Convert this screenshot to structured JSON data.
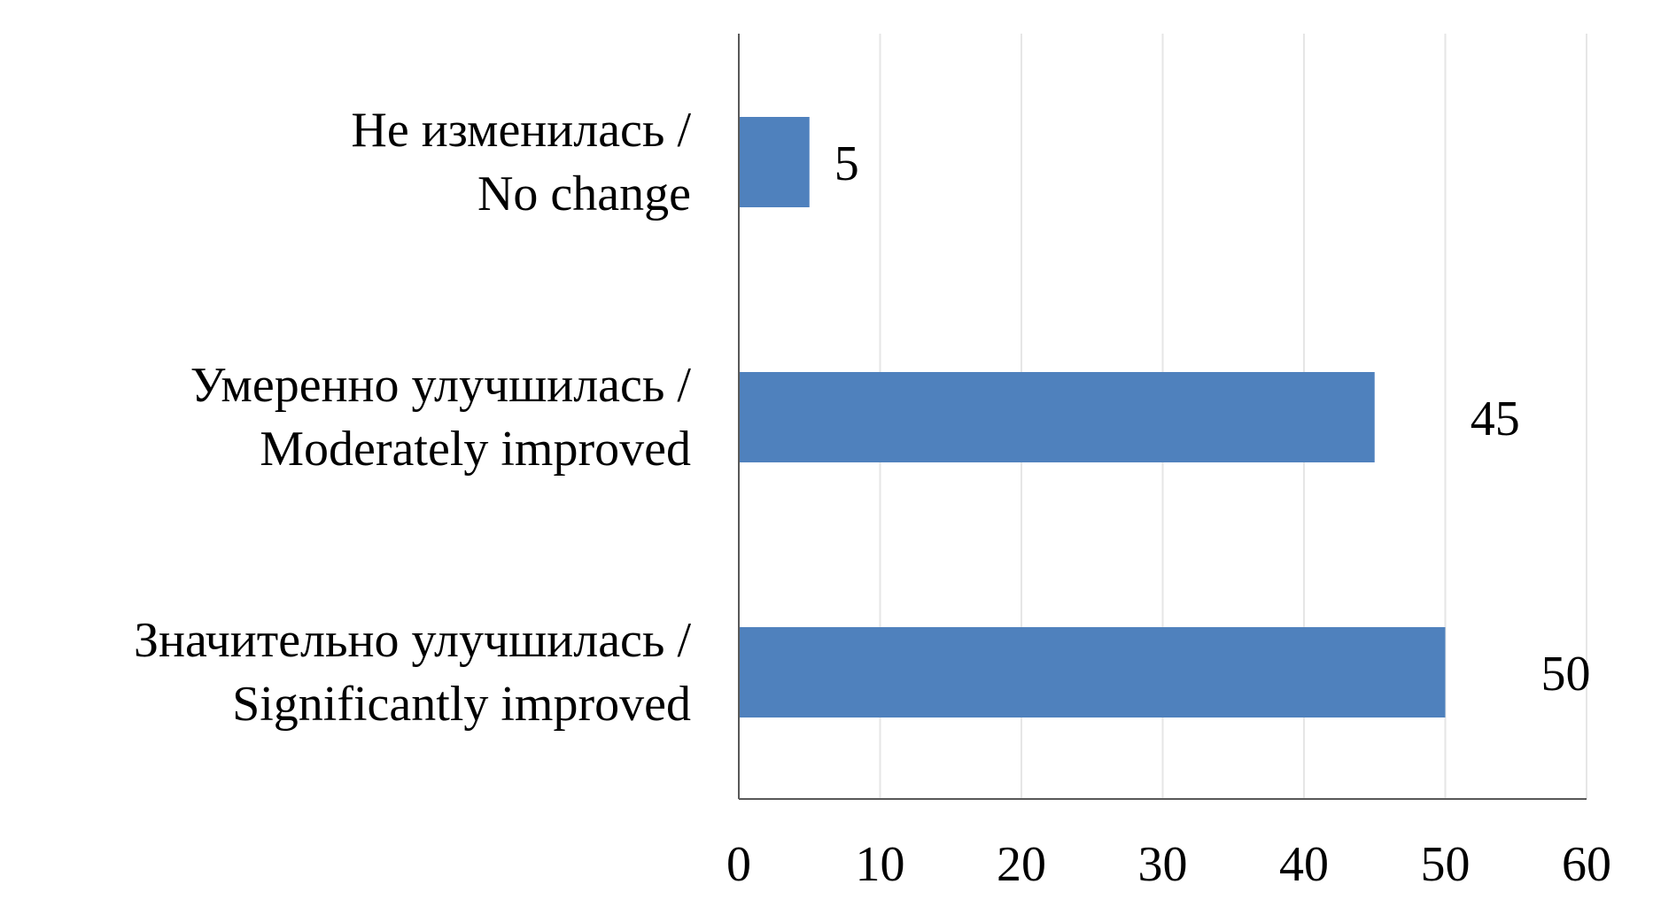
{
  "chart_data": {
    "type": "bar",
    "orientation": "horizontal",
    "categories": [
      [
        "Не изменилась /",
        "No change"
      ],
      [
        "Умеренно улучшилась /",
        "Moderately improved"
      ],
      [
        "Значительно улучшилась /",
        "Significantly improved"
      ]
    ],
    "values": [
      5,
      45,
      50
    ],
    "data_labels": [
      "5",
      "45",
      "50"
    ],
    "xlim": [
      0,
      60
    ],
    "x_ticks": [
      0,
      10,
      20,
      30,
      40,
      50,
      60
    ],
    "x_tick_labels": [
      "0",
      "10",
      "20",
      "30",
      "40",
      "50",
      "60"
    ],
    "grid": "vertical",
    "bar_color": "#4F81BD",
    "grid_color": "#E6E6E6",
    "axis_color": "#595959"
  }
}
